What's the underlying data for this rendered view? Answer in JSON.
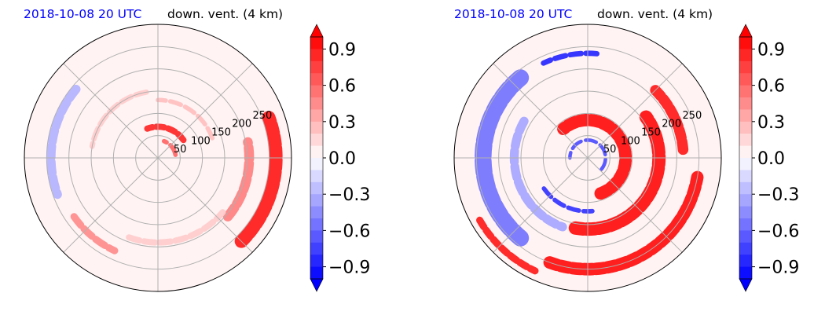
{
  "chart_data": [
    {
      "type": "heatmap",
      "projection": "polar",
      "title_left": "2018-10-08 20 UTC",
      "title_right": "down. vent. (4 km)",
      "radial_ticks": [
        50,
        100,
        150,
        200,
        250
      ],
      "radius_max": 300,
      "grid": true,
      "colorbar": {
        "ticks": [
          -0.9,
          -0.6,
          -0.3,
          0.0,
          0.3,
          0.6,
          0.9
        ],
        "tick_labels": [
          "−0.9",
          "−0.6",
          "−0.3",
          "0.0",
          "0.3",
          "0.6",
          "0.9"
        ],
        "range": [
          -1.0,
          1.0
        ],
        "extend": "both",
        "colors": {
          "negative": "#0000ff",
          "zero": "#ffffff",
          "positive": "#ff0000"
        }
      },
      "features": [
        {
          "kind": "band",
          "r": 70,
          "theta_from": 35,
          "theta_to": 110,
          "width": 14,
          "value": 0.85
        },
        {
          "kind": "band",
          "r": 40,
          "theta_from": 10,
          "theta_to": 70,
          "width": 10,
          "value": 0.6
        },
        {
          "kind": "band",
          "r": 265,
          "theta_from": -45,
          "theta_to": 20,
          "width": 30,
          "value": 0.9
        },
        {
          "kind": "band",
          "r": 205,
          "theta_from": -40,
          "theta_to": 10,
          "width": 22,
          "value": 0.5
        },
        {
          "kind": "band",
          "r": 240,
          "theta_from": 140,
          "theta_to": 200,
          "width": 20,
          "value": -0.3
        },
        {
          "kind": "band",
          "r": 230,
          "theta_from": 215,
          "theta_to": 245,
          "width": 16,
          "value": 0.45
        },
        {
          "kind": "band",
          "r": 150,
          "theta_from": 100,
          "theta_to": 170,
          "width": 12,
          "value": 0.2
        },
        {
          "kind": "band",
          "r": 190,
          "theta_from": 250,
          "theta_to": 320,
          "width": 14,
          "value": 0.2
        },
        {
          "kind": "band",
          "r": 130,
          "theta_from": 20,
          "theta_to": 90,
          "width": 10,
          "value": 0.25
        }
      ]
    },
    {
      "type": "heatmap",
      "projection": "polar",
      "title_left": "2018-10-08 20 UTC",
      "title_right": "down. vent. (4 km)",
      "radial_ticks": [
        50,
        100,
        150,
        200,
        250
      ],
      "radius_max": 300,
      "grid": true,
      "colorbar": {
        "ticks": [
          -0.9,
          -0.6,
          -0.3,
          0.0,
          0.3,
          0.6,
          0.9
        ],
        "tick_labels": [
          "−0.9",
          "−0.6",
          "−0.3",
          "0.0",
          "0.3",
          "0.6",
          "0.9"
        ],
        "range": [
          -1.0,
          1.0
        ],
        "extend": "both",
        "colors": {
          "negative": "#0000ff",
          "zero": "#ffffff",
          "positive": "#ff0000"
        }
      },
      "features": [
        {
          "kind": "band",
          "r": 85,
          "theta_from": -70,
          "theta_to": 130,
          "width": 28,
          "value": 0.95
        },
        {
          "kind": "band",
          "r": 160,
          "theta_from": -100,
          "theta_to": 35,
          "width": 30,
          "value": 0.95
        },
        {
          "kind": "band",
          "r": 250,
          "theta_from": -110,
          "theta_to": -10,
          "width": 28,
          "value": 0.95
        },
        {
          "kind": "band",
          "r": 215,
          "theta_from": 5,
          "theta_to": 45,
          "width": 24,
          "value": 0.9
        },
        {
          "kind": "band",
          "r": 235,
          "theta_from": 130,
          "theta_to": 230,
          "width": 38,
          "value": -0.55
        },
        {
          "kind": "band",
          "r": 165,
          "theta_from": 150,
          "theta_to": 250,
          "width": 20,
          "value": -0.35
        },
        {
          "kind": "band",
          "r": 120,
          "theta_from": 215,
          "theta_to": 275,
          "width": 10,
          "value": -0.8
        },
        {
          "kind": "band",
          "r": 235,
          "theta_from": 85,
          "theta_to": 115,
          "width": 12,
          "value": -0.85
        },
        {
          "kind": "band",
          "r": 40,
          "theta_from": -40,
          "theta_to": 180,
          "width": 8,
          "value": -0.7
        },
        {
          "kind": "band",
          "r": 280,
          "theta_from": -150,
          "theta_to": -115,
          "width": 16,
          "value": 0.9
        }
      ]
    }
  ]
}
